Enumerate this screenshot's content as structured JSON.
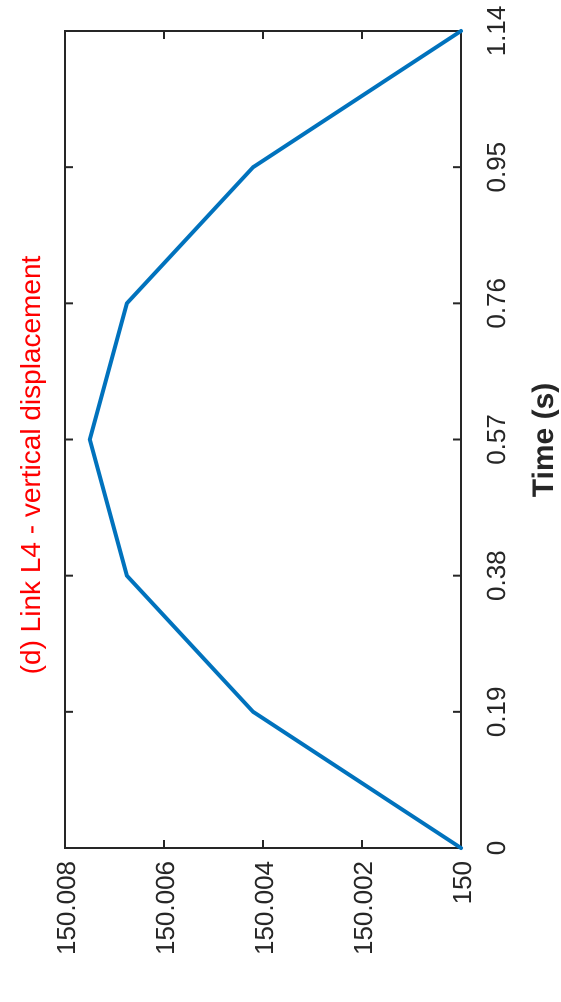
{
  "chart_data": {
    "type": "line",
    "title": "(d) Link L4 - vertical displacement",
    "xlabel": "Time (s)",
    "ylabel": "",
    "x_ticks": [
      "0",
      "0.19",
      "0.38",
      "0.57",
      "0.76",
      "0.95",
      "1.14"
    ],
    "y_ticks": [
      "150",
      "150.002",
      "150.004",
      "150.006",
      "150.008"
    ],
    "xlim": [
      0,
      1.14
    ],
    "ylim": [
      150,
      150.008
    ],
    "grid": true,
    "orientation": "rotated 90 degrees clockwise",
    "series": [
      {
        "x": [
          0,
          0.19,
          0.38,
          0.57,
          0.76,
          0.95,
          1.14
        ],
        "y": [
          150.0,
          150.0042,
          150.00675,
          150.0075,
          150.00675,
          150.0042,
          150.0
        ]
      }
    ],
    "colors": {
      "line": "#0072BD",
      "title": "#FF0000",
      "grid": "#E6E6E6",
      "axis": "#262626"
    }
  }
}
